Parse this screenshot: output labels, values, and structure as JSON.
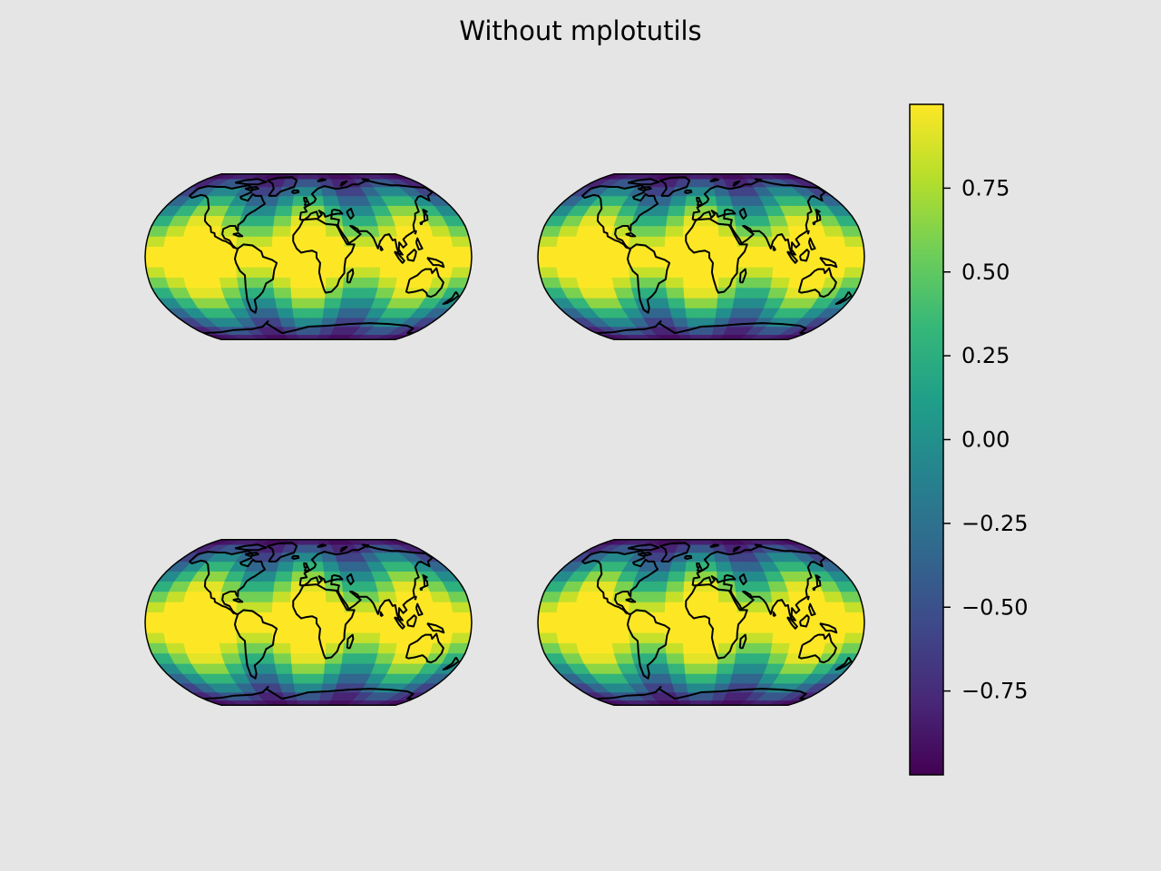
{
  "chart_data": {
    "type": "heatmap",
    "title": "Without mplotutils",
    "projection": "Robinson",
    "field": "cos(latitude) · cos(longitude-band variation)",
    "grid": "coarse lat/lon cells (about 20° lon × 10° lat)",
    "coastlines": true,
    "panels": [
      {
        "row": 1,
        "col": 1
      },
      {
        "row": 1,
        "col": 2
      },
      {
        "row": 2,
        "col": 1
      },
      {
        "row": 2,
        "col": 2
      }
    ],
    "colorbar": {
      "cmap": "viridis",
      "vmin": -1.0,
      "vmax": 1.0,
      "ticks": [
        0.75,
        0.5,
        0.25,
        0.0,
        -0.25,
        -0.5,
        -0.75
      ],
      "tick_labels": [
        "0.75",
        "0.50",
        "0.25",
        "0.00",
        "−0.25",
        "−0.50",
        "−0.75"
      ],
      "location": "right"
    },
    "colors": {
      "background": "#e5e5e5",
      "viridis": [
        "#440154",
        "#482878",
        "#3e4989",
        "#31688e",
        "#26828e",
        "#1f9e89",
        "#35b779",
        "#6ece58",
        "#b5de2b",
        "#fde725"
      ]
    }
  }
}
